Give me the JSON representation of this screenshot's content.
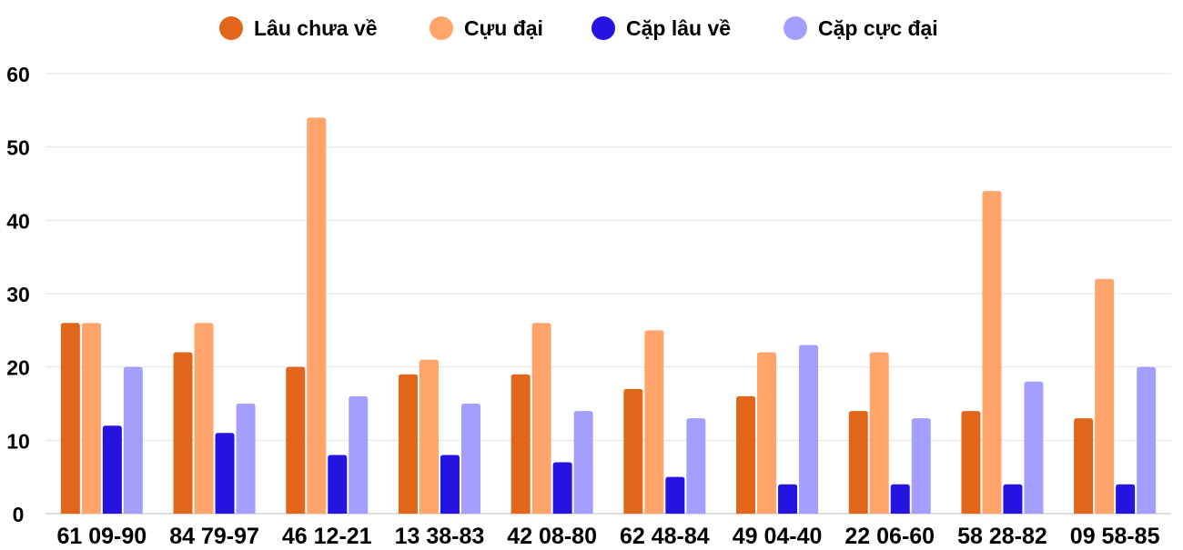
{
  "chart_data": {
    "type": "bar",
    "title": "",
    "xlabel": "",
    "ylabel": "",
    "ylim": [
      0,
      60
    ],
    "yticks": [
      0,
      10,
      20,
      30,
      40,
      50,
      60
    ],
    "grid": true,
    "legend_position": "top-center",
    "categories": [
      "61 09-90",
      "84 79-97",
      "46 12-21",
      "13 38-83",
      "42 08-80",
      "62 48-84",
      "49 04-40",
      "22 06-60",
      "58 28-82",
      "09 58-85"
    ],
    "series": [
      {
        "name": "Lâu chưa về",
        "color": "#E2661A",
        "values": [
          26,
          22,
          20,
          19,
          19,
          17,
          16,
          14,
          14,
          13
        ]
      },
      {
        "name": "Cựu đại",
        "color": "#FFA56B",
        "values": [
          26,
          26,
          54,
          21,
          26,
          25,
          22,
          22,
          44,
          32
        ]
      },
      {
        "name": "Cặp lâu về",
        "color": "#2513E2",
        "values": [
          12,
          11,
          8,
          8,
          7,
          5,
          4,
          4,
          4,
          4
        ]
      },
      {
        "name": "Cặp cực đại",
        "color": "#A49EFF",
        "values": [
          20,
          15,
          16,
          15,
          14,
          13,
          23,
          13,
          18,
          20
        ]
      }
    ]
  }
}
